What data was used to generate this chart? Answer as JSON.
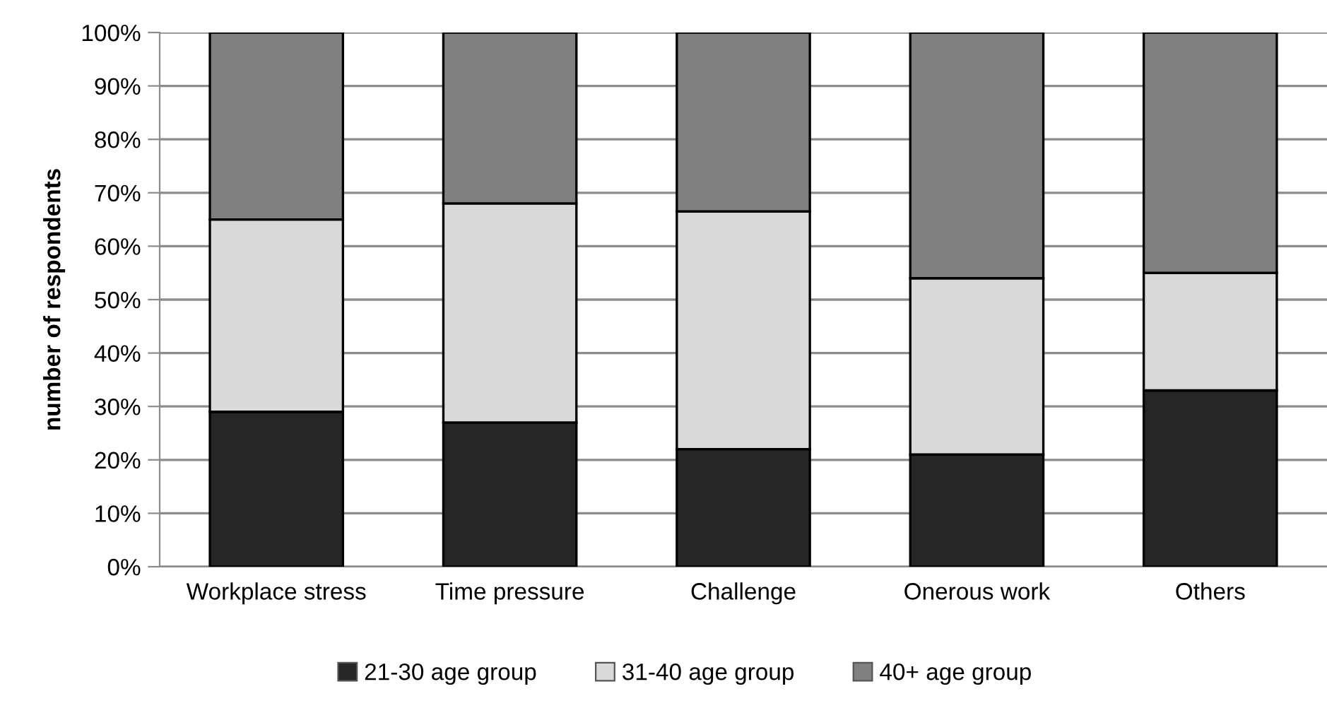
{
  "chart_data": {
    "type": "bar",
    "stacked": true,
    "ylabel": "number of respondents",
    "categories": [
      "Workplace stress",
      "Time pressure",
      "Challenge",
      "Onerous work",
      "Others"
    ],
    "series": [
      {
        "name": "21-30 age group",
        "color": "#262626",
        "values": [
          29,
          27,
          22,
          21,
          33
        ]
      },
      {
        "name": "31-40 age group",
        "color": "#d9d9d9",
        "values": [
          36,
          41,
          44.5,
          33,
          22
        ]
      },
      {
        "name": "40+ age group",
        "color": "#808080",
        "values": [
          35,
          32,
          33.5,
          46,
          45
        ]
      }
    ],
    "ylim": [
      0,
      100
    ],
    "yticks": [
      {
        "value": 0,
        "label": "0%"
      },
      {
        "value": 10,
        "label": "10%"
      },
      {
        "value": 20,
        "label": "20%"
      },
      {
        "value": 30,
        "label": "30%"
      },
      {
        "value": 40,
        "label": "40%"
      },
      {
        "value": 50,
        "label": "50%"
      },
      {
        "value": 60,
        "label": "60%"
      },
      {
        "value": 70,
        "label": "70%"
      },
      {
        "value": 80,
        "label": "80%"
      },
      {
        "value": 90,
        "label": "90%"
      },
      {
        "value": 100,
        "label": "100%"
      }
    ],
    "grid": "y",
    "legend": "bottom"
  }
}
